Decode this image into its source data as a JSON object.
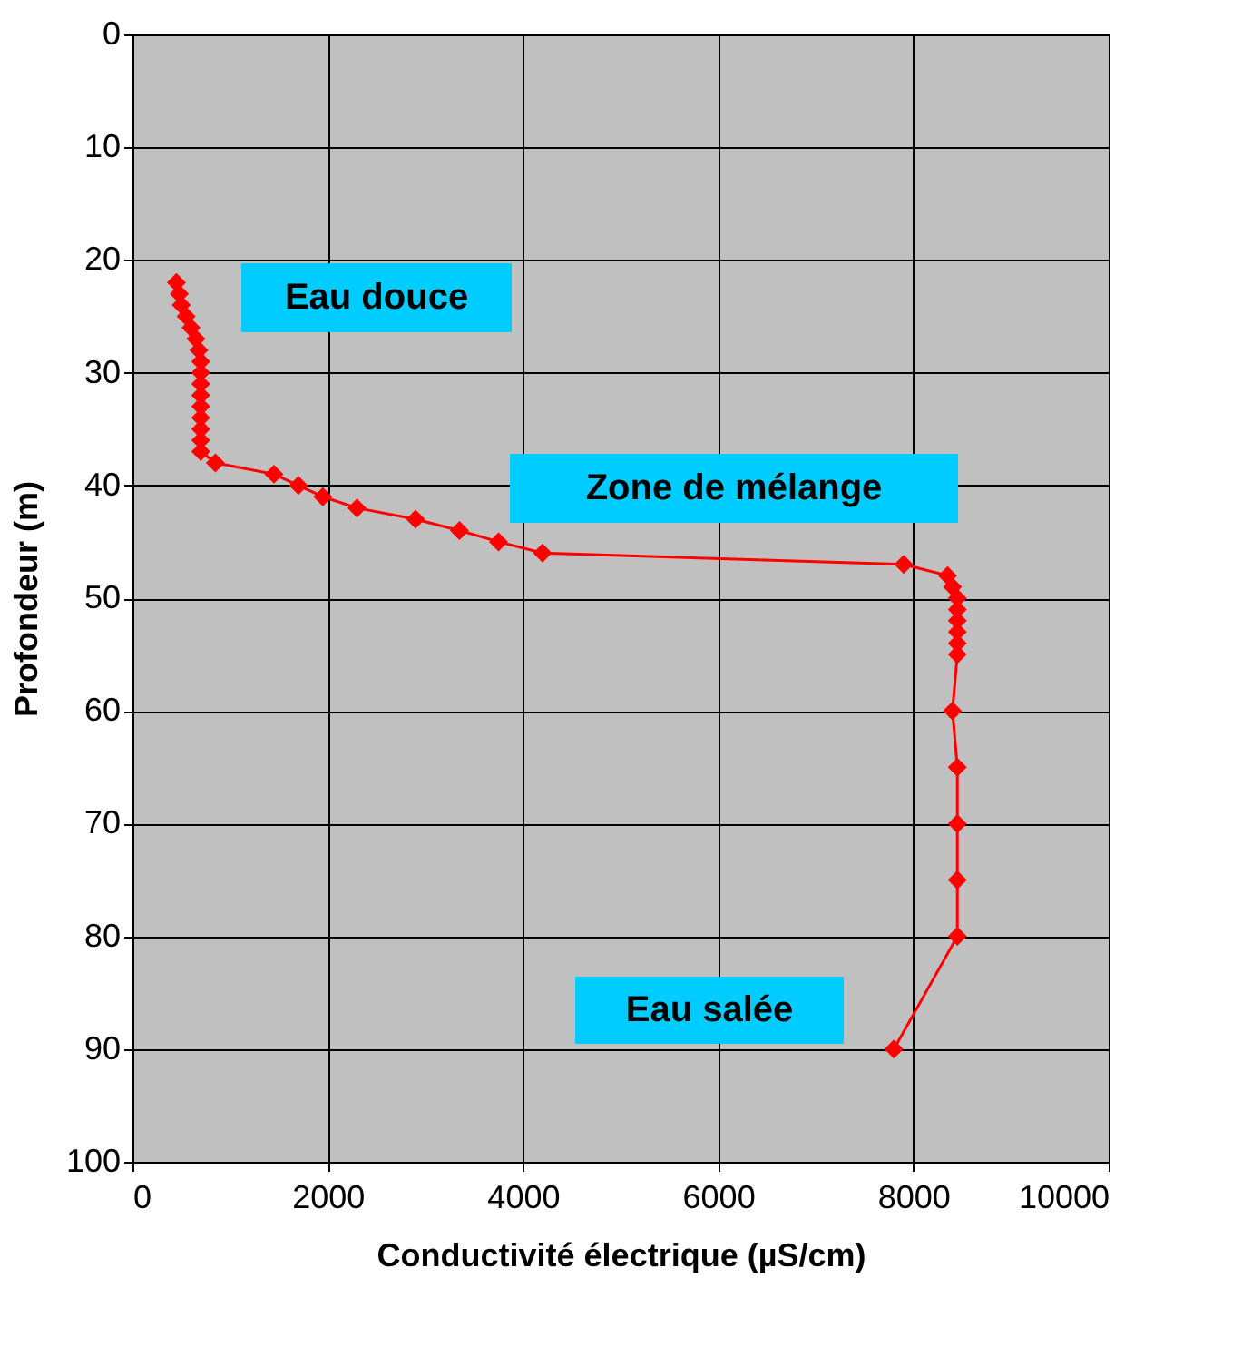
{
  "chart_data": {
    "type": "line",
    "xlabel": "Conductivité électrique (µS/cm)",
    "ylabel": "Profondeur (m)",
    "x": [
      450,
      480,
      500,
      550,
      600,
      650,
      680,
      700,
      700,
      700,
      700,
      700,
      700,
      700,
      700,
      700,
      850,
      1450,
      1700,
      1950,
      2300,
      2900,
      3350,
      3750,
      4200,
      7900,
      8350,
      8400,
      8450,
      8450,
      8450,
      8450,
      8450,
      8450,
      8400,
      8450,
      8450,
      8450,
      8450,
      7800
    ],
    "series": [
      {
        "color": "#ff0000",
        "values": [
          22,
          23,
          24,
          25,
          26,
          27,
          28,
          29,
          30,
          31,
          32,
          33,
          34,
          35,
          36,
          37,
          38,
          39,
          40,
          41,
          42,
          43,
          44,
          45,
          46,
          47,
          48,
          49,
          50,
          51,
          52,
          53,
          54,
          55,
          60,
          65,
          70,
          75,
          80,
          90
        ]
      }
    ],
    "xlim": [
      0,
      10000
    ],
    "xticks": [
      0,
      {
        "value": 2000,
        "label": "2000"
      },
      {
        "value": 4000,
        "label": "4000"
      },
      {
        "value": 6000,
        "label": "6000"
      },
      {
        "value": 8000,
        "label": "8000"
      },
      {
        "value": 10000,
        "label": "10000"
      }
    ],
    "ylim": [
      100,
      0
    ],
    "yticks": [
      0,
      10,
      20,
      30,
      40,
      50,
      60,
      70,
      80,
      90,
      100
    ],
    "grid": true,
    "marker": "diamond",
    "line_style": "solid",
    "annotations": [
      "Eau douce",
      "Zone de mélange",
      "Eau salée"
    ]
  }
}
